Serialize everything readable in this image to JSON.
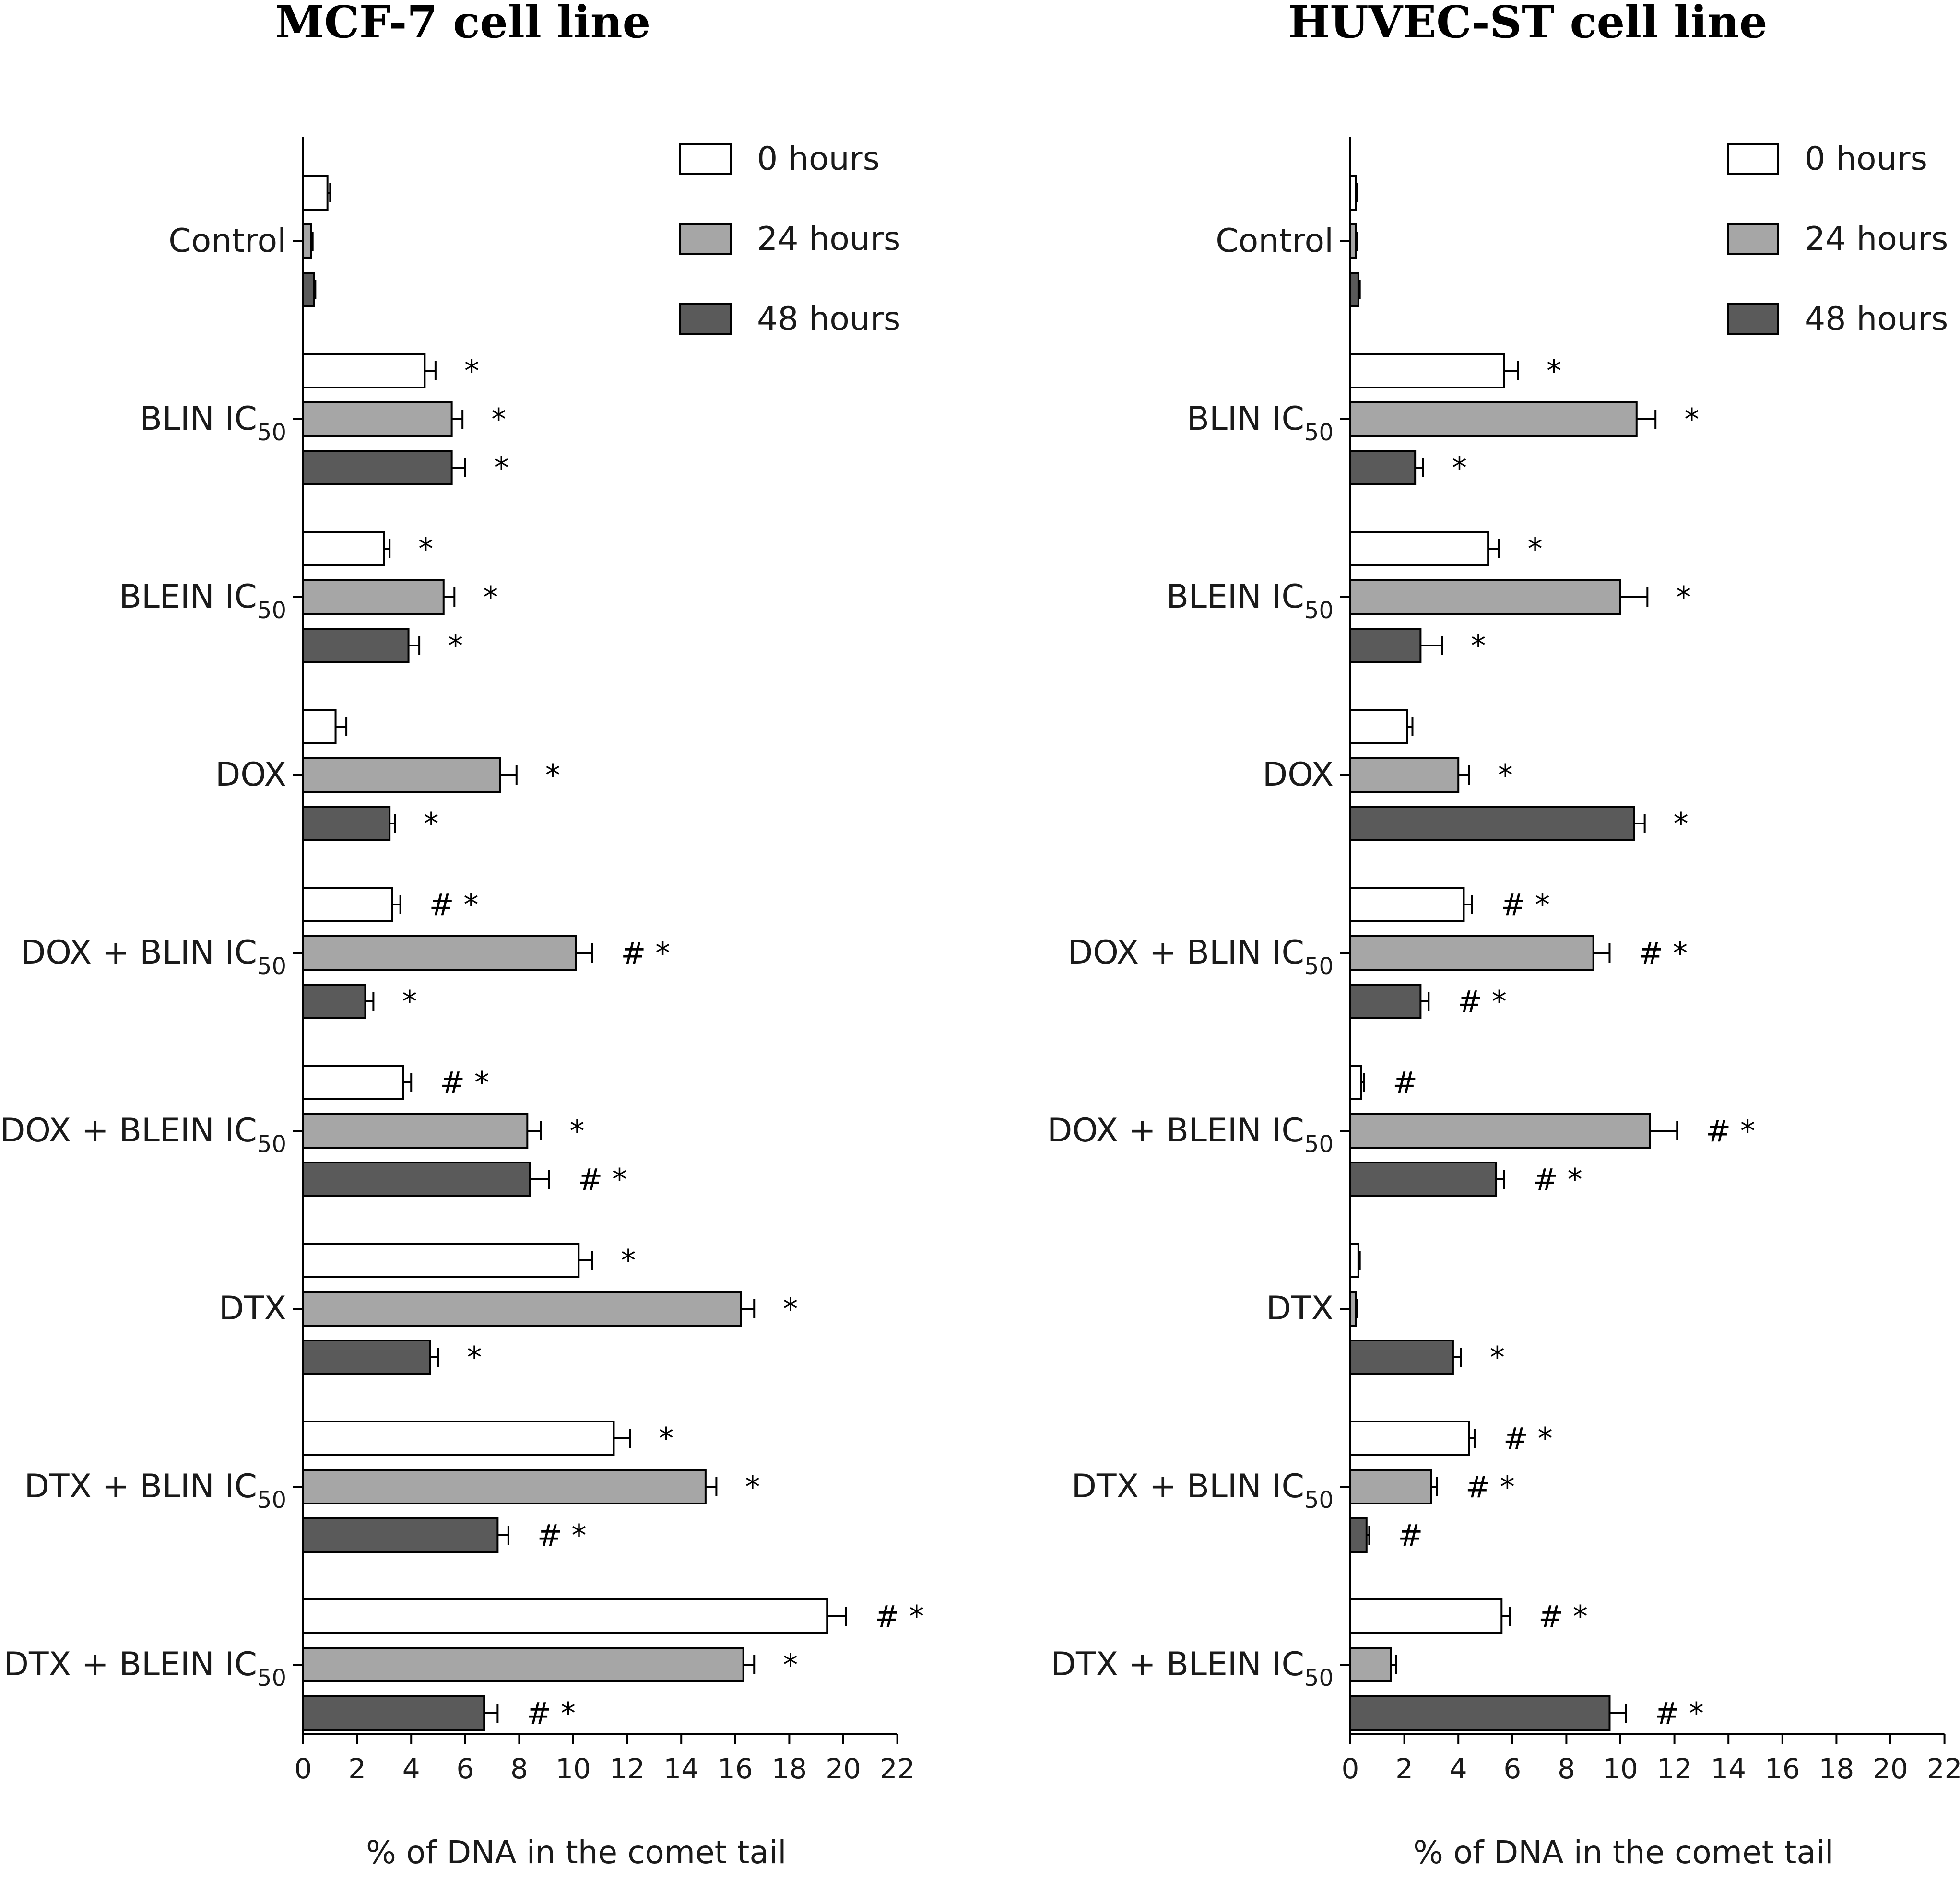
{
  "chart_data": [
    {
      "type": "bar",
      "orientation": "horizontal",
      "title": "MCF-7 cell line",
      "xlabel": "% of DNA in the comet tail",
      "xlim": [
        0,
        22
      ],
      "xticks": [
        "0",
        "2",
        "4",
        "6",
        "8",
        "10",
        "12",
        "14",
        "16",
        "18",
        "20",
        "22"
      ],
      "categories": [
        {
          "main": "Control",
          "sub": ""
        },
        {
          "main": "BLIN IC",
          "sub": "50"
        },
        {
          "main": "BLEIN IC",
          "sub": "50"
        },
        {
          "main": "DOX",
          "sub": ""
        },
        {
          "main": "DOX + BLIN IC",
          "sub": "50"
        },
        {
          "main": "DOX + BLEIN IC",
          "sub": "50"
        },
        {
          "main": "DTX",
          "sub": ""
        },
        {
          "main": "DTX + BLIN IC",
          "sub": "50"
        },
        {
          "main": "DTX + BLEIN IC",
          "sub": "50"
        }
      ],
      "series": [
        {
          "name": "0 hours",
          "color": "#ffffff",
          "values": [
            0.9,
            4.5,
            3.0,
            1.2,
            3.3,
            3.7,
            10.2,
            11.5,
            19.4
          ],
          "errors": [
            0.1,
            0.4,
            0.2,
            0.4,
            0.3,
            0.3,
            0.5,
            0.6,
            0.7
          ],
          "marks": [
            "",
            "*",
            "*",
            "",
            "# *",
            "# *",
            "*",
            "*",
            "# *"
          ]
        },
        {
          "name": "24 hours",
          "color": "#a6a6a6",
          "values": [
            0.3,
            5.5,
            5.2,
            7.3,
            10.1,
            8.3,
            16.2,
            14.9,
            16.3
          ],
          "errors": [
            0.05,
            0.4,
            0.4,
            0.6,
            0.6,
            0.5,
            0.5,
            0.4,
            0.4
          ],
          "marks": [
            "",
            "*",
            "*",
            "*",
            "# *",
            "*",
            "*",
            "*",
            "*"
          ]
        },
        {
          "name": "48 hours",
          "color": "#5a5a5a",
          "values": [
            0.4,
            5.5,
            3.9,
            3.2,
            2.3,
            8.4,
            4.7,
            7.2,
            6.7
          ],
          "errors": [
            0.05,
            0.5,
            0.4,
            0.2,
            0.3,
            0.7,
            0.3,
            0.4,
            0.5
          ],
          "marks": [
            "",
            "*",
            "*",
            "*",
            "*",
            "# *",
            "*",
            "# *",
            "# *"
          ]
        }
      ]
    },
    {
      "type": "bar",
      "orientation": "horizontal",
      "title": "HUVEC-ST cell line",
      "xlabel": "% of DNA in the comet tail",
      "xlim": [
        0,
        22
      ],
      "xticks": [
        "0",
        "2",
        "4",
        "6",
        "8",
        "10",
        "12",
        "14",
        "16",
        "18",
        "20",
        "22"
      ],
      "categories": [
        {
          "main": "Control",
          "sub": ""
        },
        {
          "main": "BLIN IC",
          "sub": "50"
        },
        {
          "main": "BLEIN IC",
          "sub": "50"
        },
        {
          "main": "DOX",
          "sub": ""
        },
        {
          "main": "DOX + BLIN IC",
          "sub": "50"
        },
        {
          "main": "DOX + BLEIN IC",
          "sub": "50"
        },
        {
          "main": "DTX",
          "sub": ""
        },
        {
          "main": "DTX + BLIN IC",
          "sub": "50"
        },
        {
          "main": "DTX + BLEIN IC",
          "sub": "50"
        }
      ],
      "series": [
        {
          "name": "0 hours",
          "color": "#ffffff",
          "values": [
            0.2,
            5.7,
            5.1,
            2.1,
            4.2,
            0.4,
            0.3,
            4.4,
            5.6
          ],
          "errors": [
            0.05,
            0.5,
            0.4,
            0.2,
            0.3,
            0.1,
            0.05,
            0.2,
            0.3
          ],
          "marks": [
            "",
            "*",
            "*",
            "",
            "# *",
            "#",
            "",
            "# *",
            "# *"
          ]
        },
        {
          "name": "24 hours",
          "color": "#a6a6a6",
          "values": [
            0.2,
            10.6,
            10.0,
            4.0,
            9.0,
            11.1,
            0.2,
            3.0,
            1.5
          ],
          "errors": [
            0.05,
            0.7,
            1.0,
            0.4,
            0.6,
            1.0,
            0.05,
            0.2,
            0.2
          ],
          "marks": [
            "",
            "*",
            "*",
            "*",
            "# *",
            "# *",
            "",
            "# *",
            ""
          ]
        },
        {
          "name": "48 hours",
          "color": "#5a5a5a",
          "values": [
            0.3,
            2.4,
            2.6,
            10.5,
            2.6,
            5.4,
            3.8,
            0.6,
            9.6
          ],
          "errors": [
            0.05,
            0.3,
            0.8,
            0.4,
            0.3,
            0.3,
            0.3,
            0.1,
            0.6
          ],
          "marks": [
            "",
            "*",
            "*",
            "*",
            "# *",
            "# *",
            "*",
            "#",
            "# *"
          ]
        }
      ]
    }
  ]
}
